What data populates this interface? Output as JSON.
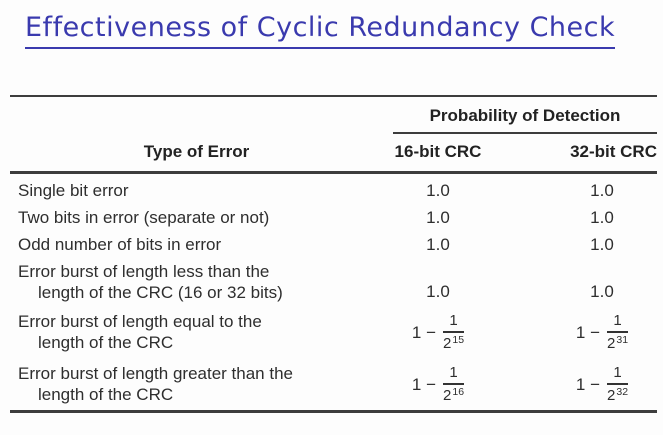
{
  "colors": {
    "title_blue": "#3a3aae",
    "text": "#2e2e2e",
    "rule": "#3d3d3d",
    "background": "#fdfdfd"
  },
  "title": {
    "text": "Effectiveness of Cyclic Redundancy Check"
  },
  "table": {
    "group_header": "Probability of Detection",
    "col_headers": {
      "type_of_error": "Type of Error",
      "crc16": "16-bit CRC",
      "crc32": "32-bit CRC"
    },
    "rows": [
      {
        "line1": "Single bit error",
        "v16": "1.0",
        "v32": "1.0"
      },
      {
        "line1": "Two bits in error (separate or not)",
        "v16": "1.0",
        "v32": "1.0"
      },
      {
        "line1": "Odd number of bits in error",
        "v16": "1.0",
        "v32": "1.0"
      },
      {
        "line1": "Error burst of length less than the",
        "line2": "length of the CRC (16 or 32 bits)",
        "v16": "1.0",
        "v32": "1.0"
      },
      {
        "line1": "Error burst of length equal to the",
        "line2": "length of the CRC",
        "v16": {
          "prefix": "1 −",
          "num": "1",
          "base": "2",
          "exp": "15"
        },
        "v32": {
          "prefix": "1 −",
          "num": "1",
          "base": "2",
          "exp": "31"
        }
      },
      {
        "line1": "Error burst of length greater than the",
        "line2": "length of the CRC",
        "v16": {
          "prefix": "1 −",
          "num": "1",
          "base": "2",
          "exp": "16"
        },
        "v32": {
          "prefix": "1 −",
          "num": "1",
          "base": "2",
          "exp": "32"
        }
      }
    ]
  }
}
